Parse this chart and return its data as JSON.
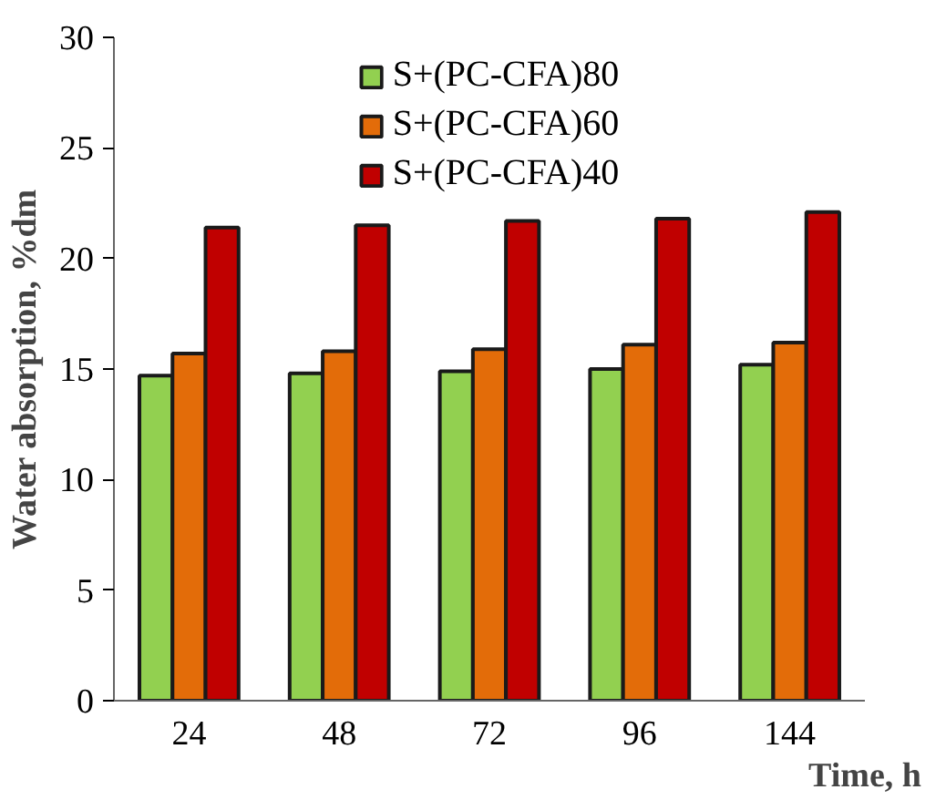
{
  "chart_data": {
    "type": "bar",
    "xlabel": "Time, h",
    "ylabel": "Water absorption, %dm",
    "categories": [
      "24",
      "48",
      "72",
      "96",
      "144"
    ],
    "series": [
      {
        "name": "S+(PC-CFA)80",
        "color": "#92d050",
        "values": [
          14.7,
          14.8,
          14.9,
          15.0,
          15.2
        ]
      },
      {
        "name": "S+(PC-CFA)60",
        "color": "#e36c09",
        "values": [
          15.7,
          15.8,
          15.9,
          16.1,
          16.2
        ]
      },
      {
        "name": "S+(PC-CFA)40",
        "color": "#c00000",
        "values": [
          21.4,
          21.5,
          21.7,
          21.8,
          22.1
        ]
      }
    ],
    "ylim": [
      0,
      30
    ],
    "yticks": [
      0,
      5,
      10,
      15,
      20,
      25,
      30
    ],
    "grid": false,
    "legend": "top"
  }
}
